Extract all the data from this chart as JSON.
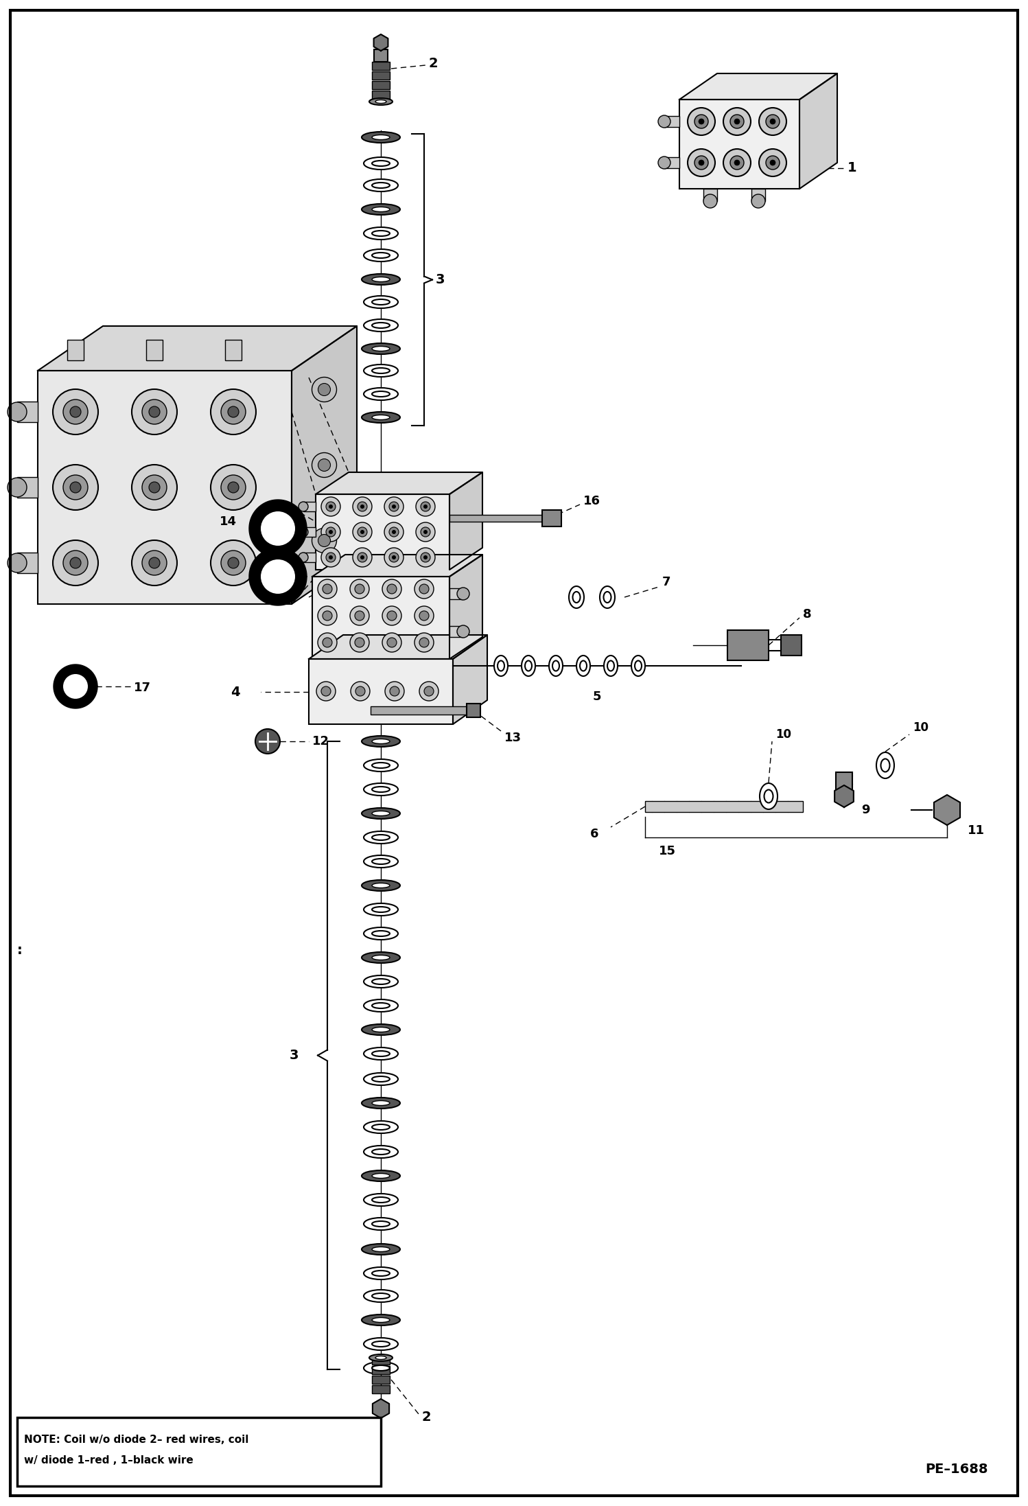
{
  "bg_color": "#ffffff",
  "border_color": "#000000",
  "line_color": "#000000",
  "figure_width": 14.98,
  "figure_height": 21.94,
  "dpi": 100,
  "note_text_line1": "NOTE: Coil w/o diode 2– red wires, coil",
  "note_text_line2": "w/ diode 1–red , 1–black wire",
  "part_number": "PE–1688",
  "lw_heavy": 2.0,
  "lw_medium": 1.5,
  "lw_light": 1.0,
  "lw_thin": 0.7
}
